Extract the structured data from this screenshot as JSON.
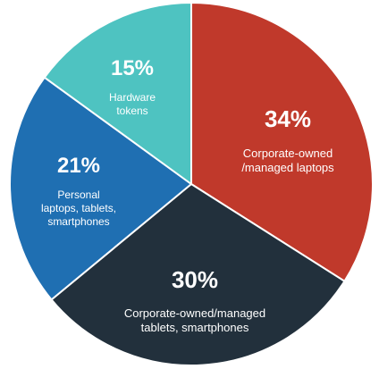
{
  "chart_data": {
    "type": "pie",
    "title": "",
    "slices": [
      {
        "percent_label": "34%",
        "value": 34,
        "label_lines": [
          "Corporate-owned",
          "/managed laptops"
        ],
        "color": "#c0392b"
      },
      {
        "percent_label": "30%",
        "value": 30,
        "label_lines": [
          "Corporate-owned/managed",
          "tablets, smartphones"
        ],
        "color": "#22303c"
      },
      {
        "percent_label": "21%",
        "value": 21,
        "label_lines": [
          "Personal",
          "laptops, tablets,",
          "smartphones"
        ],
        "color": "#1f6fb2"
      },
      {
        "percent_label": "15%",
        "value": 15,
        "label_lines": [
          "Hardware",
          "tokens"
        ],
        "color": "#4ec3c1"
      }
    ],
    "start_angle_deg": 0,
    "direction": "clockwise",
    "legend": "none"
  }
}
